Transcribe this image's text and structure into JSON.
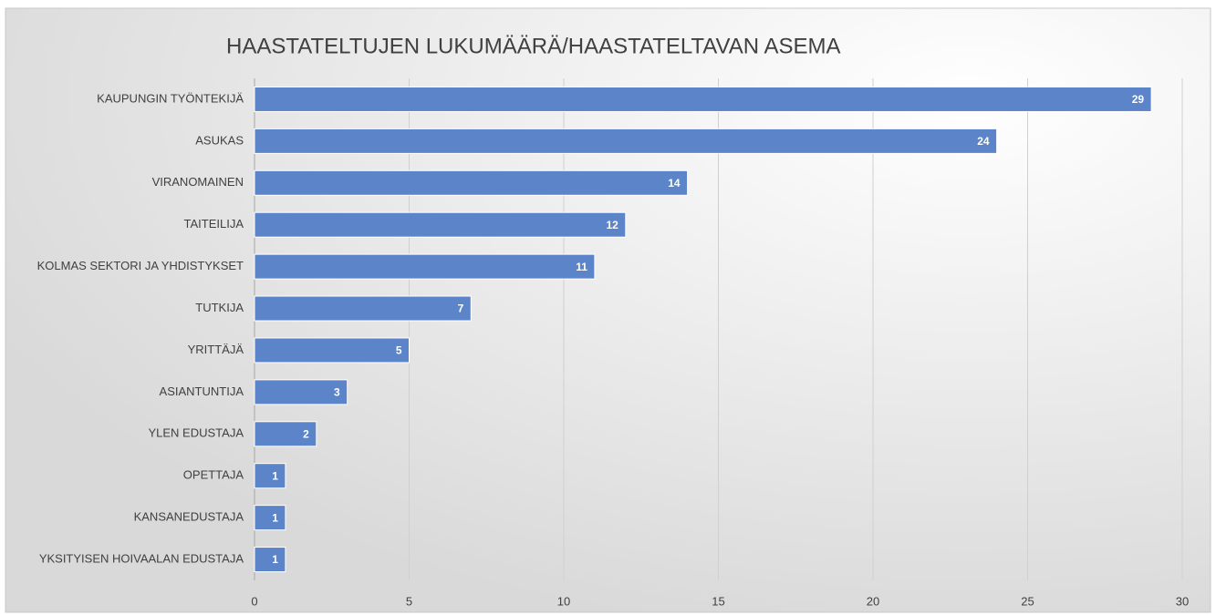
{
  "chart_data": {
    "type": "bar",
    "orientation": "horizontal",
    "title": "HAASTATELTUJEN LUKUMÄÄRÄ/HAASTATELTAVAN ASEMA",
    "categories": [
      "KAUPUNGIN TYÖNTEKIJÄ",
      "ASUKAS",
      "VIRANOMAINEN",
      "TAITEILIJA",
      "KOLMAS SEKTORI JA YHDISTYKSET",
      "TUTKIJA",
      "YRITTÄJÄ",
      "ASIANTUNTIJA",
      "YLEN EDUSTAJA",
      "OPETTAJA",
      "KANSANEDUSTAJA",
      "YKSITYISEN HOIVAALAN EDUSTAJA"
    ],
    "values": [
      29,
      24,
      14,
      12,
      11,
      7,
      5,
      3,
      2,
      1,
      1,
      1
    ],
    "color": "#5b84c9",
    "xlim": [
      0,
      30
    ],
    "xticks": [
      0,
      5,
      10,
      15,
      20,
      25,
      30
    ],
    "grid": true
  }
}
